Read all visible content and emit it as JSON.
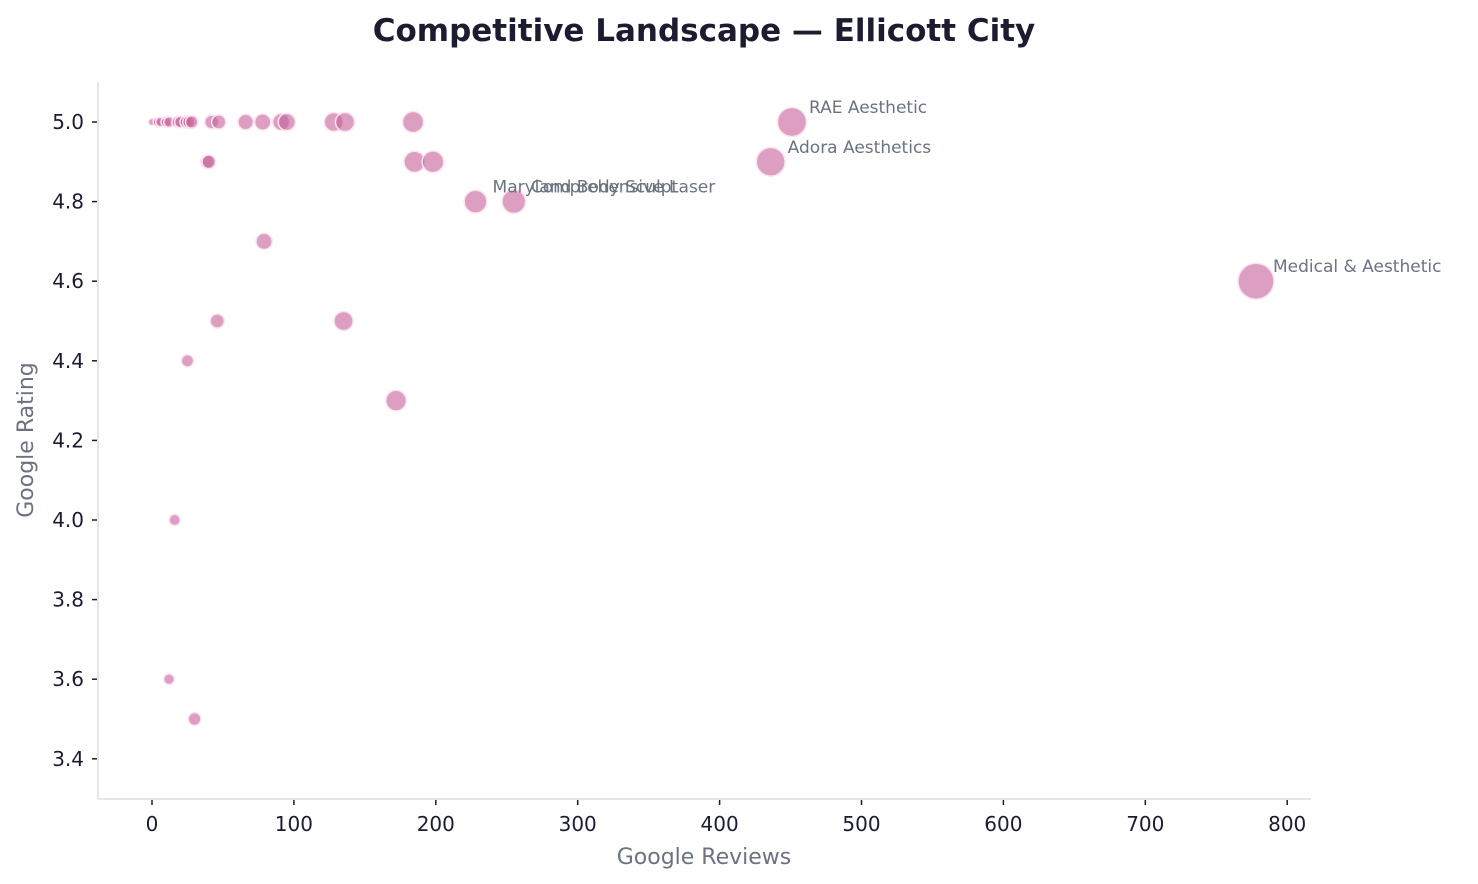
{
  "chart_data": {
    "type": "scatter",
    "title": "Competitive Landscape — Ellicott City",
    "xlabel": "Google Reviews",
    "ylabel": "Google Rating",
    "xlim": [
      -38,
      818
    ],
    "ylim": [
      3.3,
      5.1
    ],
    "x_ticks": [
      0,
      100,
      200,
      300,
      400,
      500,
      600,
      700,
      800
    ],
    "y_ticks": [
      3.4,
      3.6,
      3.8,
      4.0,
      4.2,
      4.4,
      4.6,
      4.8,
      5.0
    ],
    "grid": false,
    "bubble_size_by": "reviews",
    "color": "#c45f98",
    "points": [
      {
        "reviews": 0,
        "rating": 5.0
      },
      {
        "reviews": 4,
        "rating": 5.0
      },
      {
        "reviews": 6,
        "rating": 5.0
      },
      {
        "reviews": 10,
        "rating": 5.0
      },
      {
        "reviews": 12,
        "rating": 5.0
      },
      {
        "reviews": 18,
        "rating": 5.0
      },
      {
        "reviews": 20,
        "rating": 5.0
      },
      {
        "reviews": 24,
        "rating": 5.0
      },
      {
        "reviews": 26,
        "rating": 5.0
      },
      {
        "reviews": 28,
        "rating": 5.0
      },
      {
        "reviews": 42,
        "rating": 5.0
      },
      {
        "reviews": 47,
        "rating": 5.0
      },
      {
        "reviews": 66,
        "rating": 5.0
      },
      {
        "reviews": 78,
        "rating": 5.0
      },
      {
        "reviews": 91,
        "rating": 5.0
      },
      {
        "reviews": 95,
        "rating": 5.0
      },
      {
        "reviews": 128,
        "rating": 5.0
      },
      {
        "reviews": 136,
        "rating": 5.0
      },
      {
        "reviews": 184,
        "rating": 5.0
      },
      {
        "reviews": 451,
        "rating": 5.0,
        "label": "RAE Aesthetic"
      },
      {
        "reviews": 39,
        "rating": 4.9
      },
      {
        "reviews": 40,
        "rating": 4.9
      },
      {
        "reviews": 185,
        "rating": 4.9
      },
      {
        "reviews": 198,
        "rating": 4.9
      },
      {
        "reviews": 436,
        "rating": 4.9,
        "label": "Adora Aesthetics"
      },
      {
        "reviews": 228,
        "rating": 4.8,
        "label": "Maryland Body Sculpt"
      },
      {
        "reviews": 255,
        "rating": 4.8,
        "label": "Comprehensive Laser"
      },
      {
        "reviews": 79,
        "rating": 4.7
      },
      {
        "reviews": 778,
        "rating": 4.6,
        "label": "Medical & Aesthetic"
      },
      {
        "reviews": 46,
        "rating": 4.5
      },
      {
        "reviews": 135,
        "rating": 4.5
      },
      {
        "reviews": 25,
        "rating": 4.4
      },
      {
        "reviews": 172,
        "rating": 4.3
      },
      {
        "reviews": 16,
        "rating": 4.0
      },
      {
        "reviews": 12,
        "rating": 3.6
      },
      {
        "reviews": 30,
        "rating": 3.5
      }
    ]
  }
}
